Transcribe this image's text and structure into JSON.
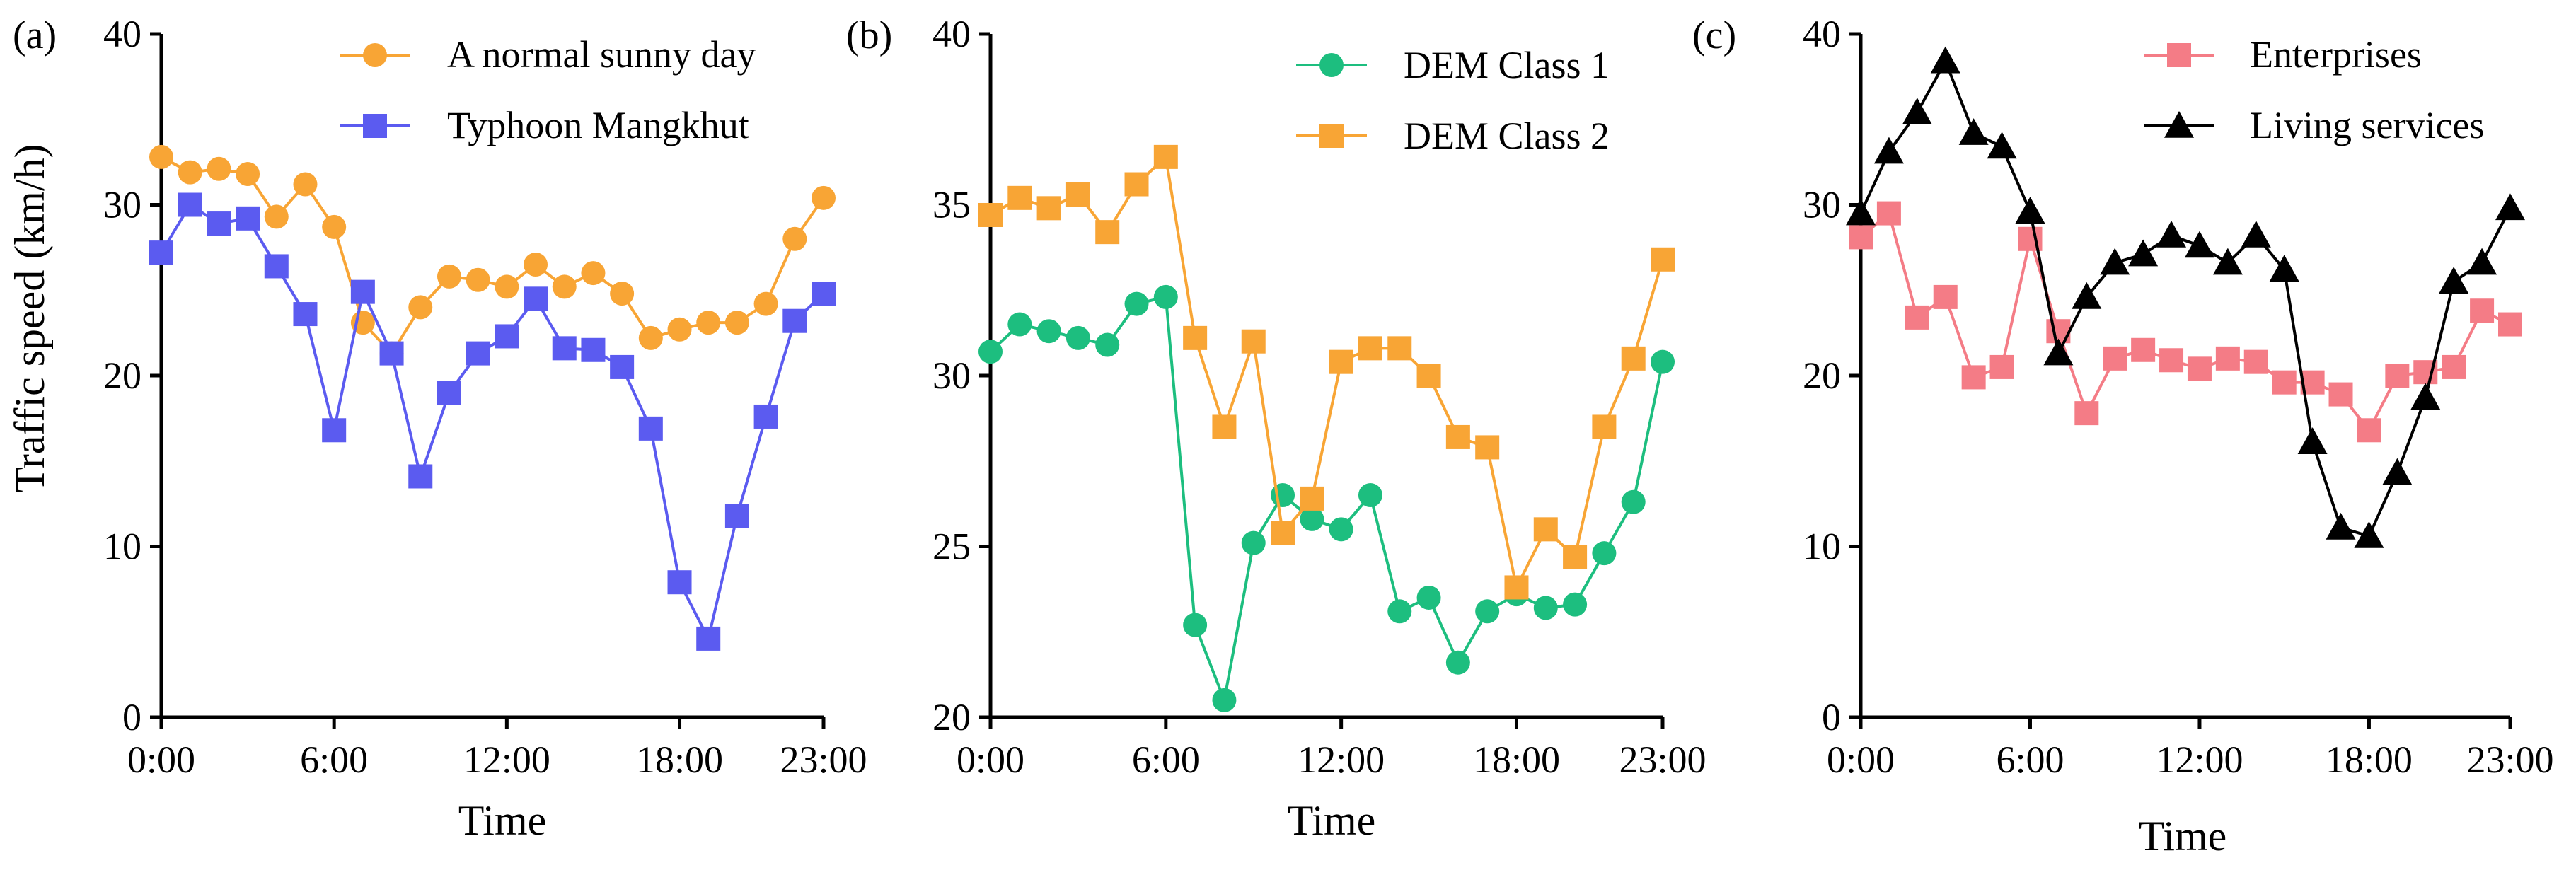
{
  "figure": {
    "ylabel": "Traffic speed (km/h)"
  },
  "chart_data": [
    {
      "type": "line",
      "panel_label": "(a)",
      "xlabel": "Time",
      "ylabel": "Traffic speed (km/h)",
      "x_tick_labels": [
        "0:00",
        "6:00",
        "12:00",
        "18:00",
        "23:00"
      ],
      "x_ticks": [
        0,
        6,
        12,
        18,
        23
      ],
      "xlim": [
        0,
        23
      ],
      "ylim": [
        0,
        40
      ],
      "y_ticks": [
        0,
        10,
        20,
        30,
        40
      ],
      "legend_position": "top-right",
      "x": [
        0,
        1,
        2,
        3,
        4,
        5,
        6,
        7,
        8,
        9,
        10,
        11,
        12,
        13,
        14,
        15,
        16,
        17,
        18,
        19,
        20,
        21,
        22,
        23
      ],
      "series": [
        {
          "name": "A normal sunny day",
          "marker": "circle",
          "color": "#F8A535",
          "values": [
            32.8,
            31.9,
            32.1,
            31.8,
            29.3,
            31.2,
            28.7,
            23.1,
            21.3,
            24.0,
            25.8,
            25.6,
            25.2,
            26.5,
            25.2,
            26.0,
            24.8,
            22.2,
            22.7,
            23.1,
            23.1,
            24.2,
            28.0,
            30.4
          ]
        },
        {
          "name": "Typhoon Mangkhut",
          "marker": "square",
          "color": "#5B5BF0",
          "values": [
            27.2,
            30.0,
            28.9,
            29.2,
            26.4,
            23.6,
            16.8,
            24.9,
            21.3,
            14.1,
            19.0,
            21.3,
            22.3,
            24.5,
            21.6,
            21.5,
            20.5,
            16.9,
            7.9,
            4.6,
            11.8,
            17.6,
            23.2,
            24.8
          ]
        }
      ]
    },
    {
      "type": "line",
      "panel_label": "(b)",
      "xlabel": "Time",
      "ylabel": "",
      "x_tick_labels": [
        "0:00",
        "6:00",
        "12:00",
        "18:00",
        "23:00"
      ],
      "x_ticks": [
        0,
        6,
        12,
        18,
        23
      ],
      "xlim": [
        0,
        23
      ],
      "ylim": [
        20,
        40
      ],
      "y_ticks": [
        20,
        25,
        30,
        35,
        40
      ],
      "legend_position": "top-right",
      "x": [
        0,
        1,
        2,
        3,
        4,
        5,
        6,
        7,
        8,
        9,
        10,
        11,
        12,
        13,
        14,
        15,
        16,
        17,
        18,
        19,
        20,
        21,
        22,
        23
      ],
      "series": [
        {
          "name": "DEM Class 1",
          "marker": "circle",
          "color": "#1DBE7F",
          "values": [
            30.7,
            31.5,
            31.3,
            31.1,
            30.9,
            32.1,
            32.3,
            22.7,
            20.5,
            25.1,
            26.5,
            25.8,
            25.5,
            26.5,
            23.1,
            23.5,
            21.6,
            23.1,
            23.6,
            23.2,
            23.3,
            24.8,
            26.3,
            30.4
          ]
        },
        {
          "name": "DEM Class 2",
          "marker": "square",
          "color": "#F8A535",
          "values": [
            34.7,
            35.2,
            34.9,
            35.3,
            34.2,
            35.6,
            36.4,
            31.1,
            28.5,
            31.0,
            25.4,
            26.4,
            30.4,
            30.8,
            30.8,
            30.0,
            28.2,
            27.9,
            23.8,
            25.5,
            24.7,
            28.5,
            30.5,
            33.4
          ]
        }
      ]
    },
    {
      "type": "line",
      "panel_label": "(c)",
      "xlabel": "Time",
      "ylabel": "",
      "x_tick_labels": [
        "0:00",
        "6:00",
        "12:00",
        "18:00",
        "23:00"
      ],
      "x_ticks": [
        0,
        6,
        12,
        18,
        23
      ],
      "xlim": [
        0,
        23
      ],
      "ylim": [
        0,
        40
      ],
      "y_ticks": [
        0,
        10,
        20,
        30,
        40
      ],
      "legend_position": "top-right",
      "x": [
        0,
        1,
        2,
        3,
        4,
        5,
        6,
        7,
        8,
        9,
        10,
        11,
        12,
        13,
        14,
        15,
        16,
        17,
        18,
        19,
        20,
        21,
        22,
        23
      ],
      "series": [
        {
          "name": "Enterprises",
          "marker": "square",
          "color": "#F47C86",
          "values": [
            28.1,
            29.5,
            23.4,
            24.6,
            19.9,
            20.5,
            28.0,
            22.6,
            17.8,
            21.0,
            21.5,
            20.9,
            20.4,
            21.0,
            20.8,
            19.6,
            19.6,
            18.9,
            16.8,
            20.0,
            20.2,
            20.5,
            23.8,
            23.0
          ]
        },
        {
          "name": "Living services",
          "marker": "triangle",
          "color": "#000000",
          "values": [
            29.5,
            33.1,
            35.4,
            38.4,
            34.2,
            33.4,
            29.6,
            21.3,
            24.6,
            26.6,
            27.1,
            28.2,
            27.6,
            26.6,
            28.2,
            26.2,
            16.1,
            11.1,
            10.6,
            14.3,
            18.7,
            25.5,
            26.6,
            29.8
          ]
        }
      ]
    }
  ]
}
